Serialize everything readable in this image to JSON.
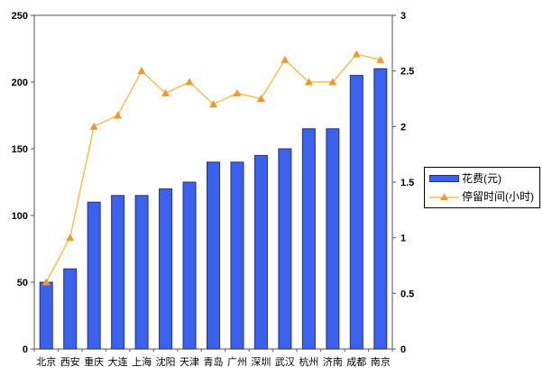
{
  "chart_data": {
    "type": "combo_bar_line",
    "title": "",
    "categories": [
      "北京",
      "西安",
      "重庆",
      "大连",
      "上海",
      "沈阳",
      "天津",
      "青岛",
      "广州",
      "深圳",
      "武汉",
      "杭州",
      "济南",
      "成都",
      "南京"
    ],
    "series": [
      {
        "name": "花费(元)",
        "type": "bar",
        "axis": "left",
        "values": [
          50,
          60,
          110,
          115,
          115,
          120,
          125,
          140,
          140,
          145,
          150,
          165,
          165,
          205,
          210
        ],
        "fill": "#3a62ee",
        "stroke": "#283178"
      },
      {
        "name": "停留时间(小时)",
        "type": "line",
        "axis": "right",
        "marker": "triangle",
        "values": [
          0.6,
          1,
          2,
          2.1,
          2.5,
          2.3,
          2.4,
          2.2,
          2.3,
          2.25,
          2.6,
          2.4,
          2.4,
          2.65,
          2.6
        ],
        "line_color": "#f7c04a",
        "marker_color": "#f2992e"
      }
    ],
    "left_axis": {
      "min": 0,
      "max": 250,
      "step": 50,
      "tick_labels": [
        "0",
        "50",
        "100",
        "150",
        "200",
        "250"
      ]
    },
    "right_axis": {
      "min": 0,
      "max": 3,
      "step": 0.5,
      "tick_labels": [
        "0",
        "0.5",
        "1",
        "1.5",
        "2",
        "2.5",
        "3"
      ]
    },
    "legend": {
      "position": "middle-right",
      "items": [
        {
          "label": "花费(元)",
          "swatch": "bar"
        },
        {
          "label": "停留时间(小时)",
          "swatch": "line-triangle"
        }
      ]
    },
    "grid": false,
    "plot_frame": true,
    "axis_color": "#6e6e6e",
    "label_color": "#000000",
    "background": "#ffffff"
  }
}
